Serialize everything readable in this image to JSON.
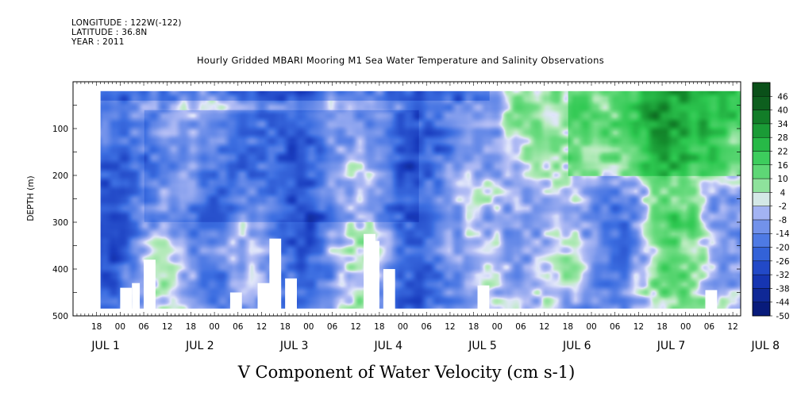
{
  "header": {
    "longitude": "LONGITUDE : 122W(-122)",
    "latitude": "LATITUDE : 36.8N",
    "year": "YEAR : 2011"
  },
  "chart_data": {
    "type": "heatmap",
    "title": "Hourly Gridded MBARI Mooring M1 Sea Water Temperature and Salinity Observations",
    "xlabel": "V Component of Water Velocity (cm s-1)",
    "ylabel": "DEPTH (m)",
    "x_range_hours": [
      12,
      182
    ],
    "data_x_range_hours": [
      19,
      182
    ],
    "x_start": "JUL 1 00",
    "y_range": [
      500,
      0
    ],
    "data_depth_range_m": [
      20,
      485
    ],
    "y_ticks": [
      100,
      200,
      300,
      400,
      500
    ],
    "x_hour_ticks": [
      "18",
      "00",
      "06",
      "12",
      "18",
      "00",
      "06",
      "12",
      "18",
      "00",
      "06",
      "12",
      "18",
      "00",
      "06",
      "12",
      "18",
      "00",
      "06",
      "12",
      "18",
      "00",
      "06",
      "12",
      "18",
      "00",
      "06",
      "12",
      "18",
      "00",
      "06",
      "12"
    ],
    "x_day_labels": [
      "JUL  1",
      "JUL  2",
      "JUL  3",
      "JUL  4",
      "JUL  5",
      "JUL  6",
      "JUL  7",
      "JUL  8"
    ],
    "colorbar_levels": [
      -50,
      -44,
      -38,
      -32,
      -26,
      -20,
      -14,
      -8,
      -2,
      4,
      10,
      16,
      22,
      28,
      34,
      40,
      46
    ],
    "colorbar_tick_labels": [
      "46",
      "40",
      "34",
      "28",
      "22",
      "16",
      "10",
      "4",
      "-2",
      "-8",
      "-14",
      "-20",
      "-26",
      "-32",
      "-38",
      "-44",
      "-50"
    ],
    "colors": {
      "strong_negative": "#0a1f8f",
      "negative": "#3f6fe0",
      "weak_negative": "#a8b4ee",
      "near_zero": "#ffffff",
      "weak_positive": "#9fe8a3",
      "positive": "#33cc55",
      "strong_positive": "#0e5a1e"
    },
    "pattern": {
      "surface_layer": "strong negative (-26 to -20) across Jul 1-5 near 20-40 m",
      "jul2_jul4_midwater": "negative (-20 to -14) 50-300 m",
      "late_period_upper": "positive (16 to 34) above 200 m from Jul 5 18h to Jul 8",
      "deep_bands": "alternating weak positive (4 to 16) and weak negative (-8 to -2) bands below 250 m",
      "missing_data": "white gaps near bottom around Jul 1 06h, Jul 3 06h, Jul 4 06h, Jul 5 00h, Jul 8 06h"
    }
  }
}
